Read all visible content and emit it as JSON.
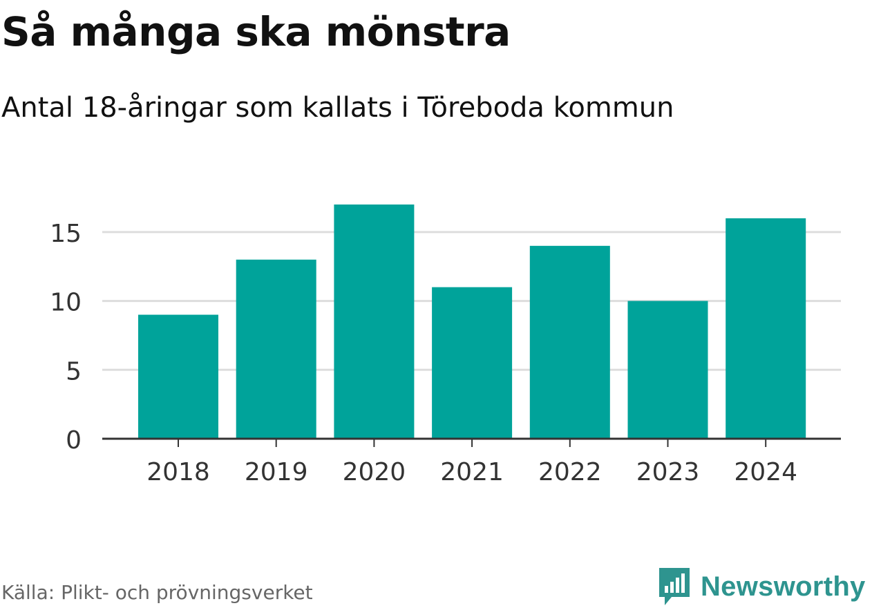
{
  "title": "Så många ska mönstra",
  "subtitle": "Antal 18-åringar som kallats i Töreboda kommun",
  "source": "Källa: Plikt- och prövningsverket",
  "brand": {
    "name": "Newsworthy",
    "icon": "newsworthy-logo-icon",
    "color": "#2e948f"
  },
  "colors": {
    "bar": "#00a39a",
    "grid": "#dddddd",
    "axis": "#333333",
    "tick_text": "#333333"
  },
  "chart_data": {
    "type": "bar",
    "title": "Så många ska mönstra",
    "subtitle": "Antal 18-åringar som kallats i Töreboda kommun",
    "xlabel": "",
    "ylabel": "",
    "categories": [
      "2018",
      "2019",
      "2020",
      "2021",
      "2022",
      "2023",
      "2024"
    ],
    "values": [
      9,
      13,
      17,
      11,
      14,
      10,
      16
    ],
    "ylim": [
      0,
      17
    ],
    "yticks": [
      0,
      5,
      10,
      15
    ],
    "ytick_labels": [
      "0",
      "5",
      "10",
      "15"
    ],
    "grid": true,
    "legend": "none"
  }
}
